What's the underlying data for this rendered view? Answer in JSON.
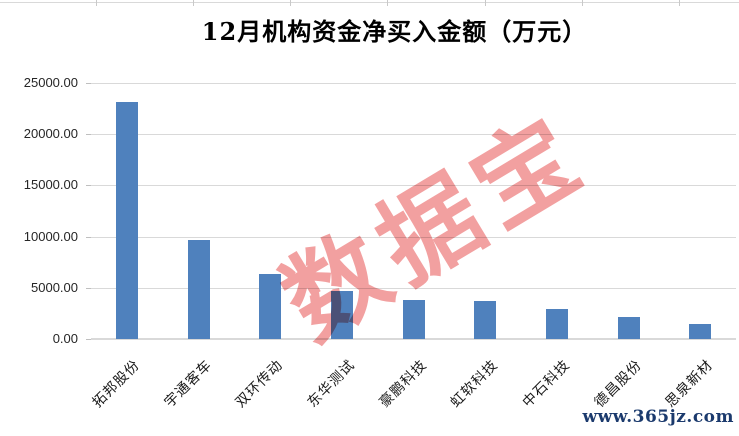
{
  "title": "12月机构资金净买入金额（万元）",
  "watermark": "数据宝",
  "site_url": "www.365jz.com",
  "colors": {
    "bar": "#4f81bd",
    "gridline": "#d9d9d9",
    "watermark_pink": "#f2a0a0",
    "url_text": "#1b3a6d",
    "axis_text": "#262626",
    "title_text": "#000000"
  },
  "chart_data": {
    "type": "bar",
    "title": "12月机构资金净买入金额（万元）",
    "categories": [
      "拓邦股份",
      "宇通客车",
      "双环传动",
      "东华测试",
      "豪鹏科技",
      "虹软科技",
      "中石科技",
      "德昌股份",
      "思泉新材"
    ],
    "values": [
      23100,
      9700,
      6300,
      4650,
      3850,
      3750,
      2900,
      2100,
      1450
    ],
    "xlabel": "",
    "ylabel": "",
    "ylim": [
      0,
      25000
    ],
    "yticks": [
      0,
      5000,
      10000,
      15000,
      20000,
      25000
    ],
    "ytick_labels": [
      "0.00",
      "5000.00",
      "10000.00",
      "15000.00",
      "20000.00",
      "25000.00"
    ],
    "grid": "horizontal",
    "legend": "none",
    "bar_color": "#4f81bd"
  }
}
